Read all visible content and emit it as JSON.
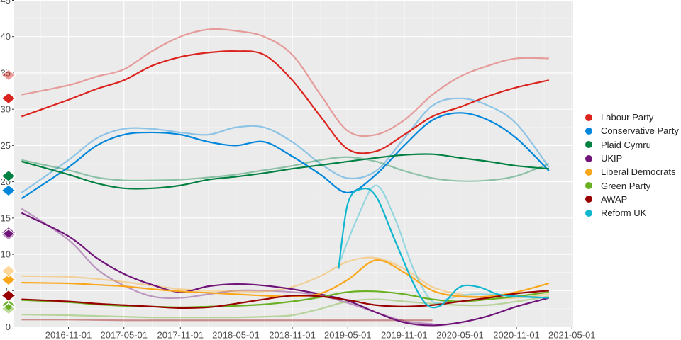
{
  "chart_data": {
    "type": "line",
    "title": "",
    "xlabel": "",
    "ylabel": "",
    "xlim": [
      "2016-05-08",
      "2021-05-05"
    ],
    "ylim": [
      0,
      45
    ],
    "x_ticks": [
      "2016-11-01",
      "2017-05-01",
      "2017-11-01",
      "2018-05-01",
      "2018-11-01",
      "2019-05-01",
      "2019-11-01",
      "2020-05-01",
      "2020-11-01",
      "2021-05-01"
    ],
    "y_ticks": [
      0,
      5,
      10,
      15,
      20,
      25,
      30,
      35,
      40,
      45
    ],
    "grid": true,
    "legend_position": "right",
    "x": [
      "2016-06-01",
      "2016-11-01",
      "2017-02-01",
      "2017-05-01",
      "2017-08-01",
      "2017-11-01",
      "2018-02-01",
      "2018-05-01",
      "2018-08-01",
      "2018-11-01",
      "2019-02-01",
      "2019-05-01",
      "2019-08-01",
      "2019-11-01",
      "2020-02-01",
      "2020-05-01",
      "2020-08-01",
      "2020-11-01",
      "2021-02-15"
    ],
    "series": [
      {
        "name": "Labour Party",
        "color": "#dc241f",
        "values": [
          29,
          31.3,
          32.8,
          34,
          36,
          37.2,
          37.8,
          38,
          37.5,
          34,
          29,
          24.5,
          24.2,
          26.5,
          29,
          30.3,
          31.8,
          33,
          34
        ],
        "light_values": [
          32,
          33.3,
          34.5,
          35.5,
          38,
          40,
          41,
          40.8,
          40,
          37.5,
          32,
          27,
          26.5,
          28.5,
          32,
          34.5,
          36,
          37,
          37
        ],
        "start_markers": [
          31.5,
          34.7
        ]
      },
      {
        "name": "Conservative Party",
        "color": "#0087dc",
        "values": [
          17.7,
          22,
          25,
          26.5,
          26.8,
          26.5,
          25.5,
          25,
          25.5,
          23.5,
          21,
          18.5,
          21,
          25,
          28.5,
          29.5,
          28.5,
          26,
          21.5
        ],
        "light_values": [
          18.5,
          23,
          26,
          27.3,
          27.3,
          26.8,
          26.5,
          27.5,
          27.5,
          25.5,
          22.5,
          20.5,
          21.5,
          26,
          30.5,
          31.5,
          30.5,
          28,
          22
        ],
        "start_markers": [
          18.8
        ]
      },
      {
        "name": "Plaid Cymru",
        "color": "#008142",
        "values": [
          22.8,
          21,
          19.8,
          19.1,
          19.1,
          19.5,
          20.3,
          20.7,
          21.2,
          21.8,
          22.3,
          22.8,
          23.3,
          23.7,
          23.8,
          23.3,
          22.8,
          22.2,
          21.8
        ],
        "light_values": [
          23,
          21.6,
          20.6,
          20.2,
          20.2,
          20.3,
          20.6,
          21,
          21.6,
          22.2,
          23,
          23.4,
          22.8,
          21.5,
          20.5,
          20.1,
          20.2,
          20.8,
          22.5
        ],
        "start_markers": [
          20.8
        ]
      },
      {
        "name": "UKIP",
        "color": "#70147a",
        "values": [
          15.7,
          12.5,
          9.5,
          7.3,
          5.8,
          4.8,
          5.6,
          5.9,
          5.7,
          5.2,
          4.5,
          3.6,
          2,
          0.6,
          0.2,
          0.6,
          1.5,
          2.8,
          4
        ],
        "light_values": [
          16.3,
          12,
          8,
          5.7,
          4.2,
          4,
          4.5,
          5,
          5,
          4.8,
          4.3,
          3.3,
          2,
          0.8,
          0.4,
          null,
          null,
          null,
          null
        ],
        "start_markers": [
          13,
          12.7
        ]
      },
      {
        "name": "Liberal Democrats",
        "color": "#faa61a",
        "values": [
          6.1,
          6,
          5.8,
          5.6,
          5.2,
          4.9,
          4.7,
          4.5,
          4.3,
          4.2,
          4.6,
          6.5,
          9.2,
          7.5,
          5,
          4.2,
          4.2,
          4.8,
          6
        ],
        "light_values": [
          7,
          6.9,
          6.6,
          6.2,
          5.7,
          5.2,
          5,
          4.9,
          4.9,
          5.5,
          7,
          9,
          9.5,
          8,
          5.5,
          4.5,
          4,
          4,
          4.5
        ],
        "start_markers": [
          6.5,
          7.7
        ]
      },
      {
        "name": "Green Party",
        "color": "#6ab023",
        "values": [
          3.7,
          3.4,
          3.1,
          2.9,
          2.8,
          2.7,
          2.8,
          2.9,
          3.1,
          3.5,
          4.1,
          4.8,
          4.9,
          4.5,
          3.8,
          3.5,
          3.8,
          4.2,
          4.8
        ],
        "light_values": [
          1.7,
          1.6,
          1.5,
          1.4,
          1.3,
          1.3,
          1.3,
          1.3,
          1.4,
          1.6,
          2.5,
          3.5,
          3.8,
          3.5,
          3.2,
          3,
          3,
          3.5,
          4.2
        ],
        "start_markers": [
          3,
          2.5
        ]
      },
      {
        "name": "AWAP",
        "color": "#990000",
        "values": [
          3.8,
          3.5,
          3.2,
          3,
          2.8,
          2.6,
          2.7,
          3.2,
          3.8,
          4.3,
          4.2,
          3.7,
          3,
          2.8,
          3,
          3.5,
          4,
          4.6,
          5
        ],
        "light_values": [
          1,
          1,
          0.95,
          0.9,
          0.9,
          0.9,
          0.9,
          0.9,
          0.9,
          0.9,
          0.9,
          0.9,
          0.9,
          0.9,
          0.9,
          null,
          null,
          null,
          null
        ],
        "start_markers": [
          4.3
        ]
      },
      {
        "name": "Reform UK",
        "color": "#12b6cf",
        "x": [
          "2019-04-01",
          "2019-05-01",
          "2019-06-15",
          "2019-08-01",
          "2019-10-01",
          "2019-12-01",
          "2020-01-15",
          "2020-03-01",
          "2020-05-01",
          "2020-07-01",
          "2020-09-01",
          "2020-11-01",
          "2021-02-15"
        ],
        "values": [
          8,
          17,
          19,
          18,
          12,
          6,
          3,
          3,
          5.5,
          5.5,
          4.5,
          4.2,
          4
        ],
        "light_x": [
          "2019-04-01",
          "2019-06-01",
          "2019-08-01",
          "2019-10-01",
          "2019-12-01",
          "2020-02-01",
          "2020-04-01",
          "2020-07-01",
          "2021-02-15"
        ],
        "light_values": [
          8.5,
          15,
          19.5,
          15,
          8,
          3.5,
          4,
          4.5,
          4
        ]
      }
    ]
  }
}
